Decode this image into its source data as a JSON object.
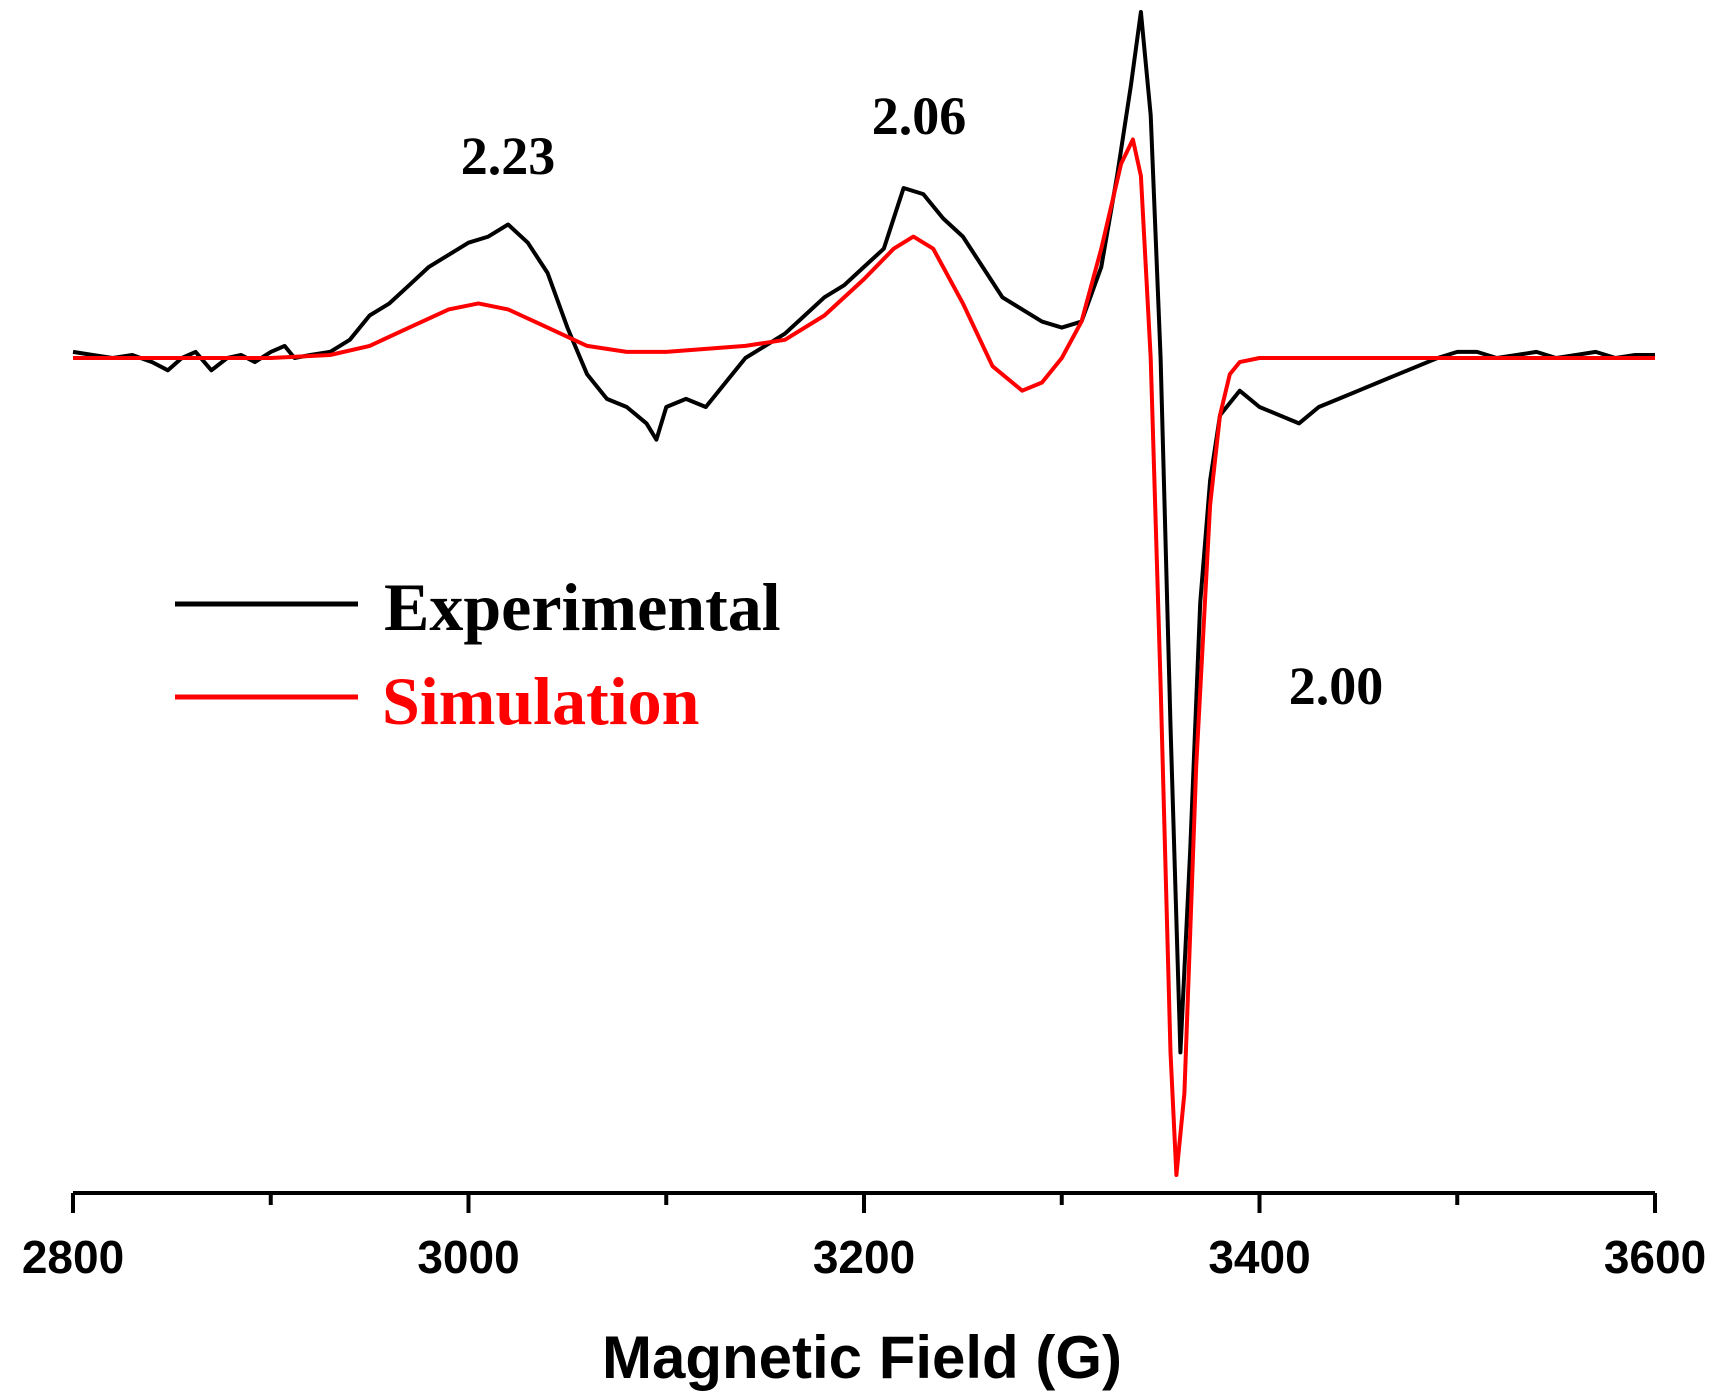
{
  "chart_data": {
    "type": "line",
    "title": "",
    "xlabel": "Magnetic Field (G)",
    "ylabel": "",
    "xlim": [
      2800,
      3600
    ],
    "ylim": [
      -1.0,
      0.4
    ],
    "x_ticks": [
      2800,
      3000,
      3200,
      3400,
      3600
    ],
    "x_tick_labels": [
      "2800",
      "3000",
      "3200",
      "3400",
      "3600"
    ],
    "x_minor_ticks": [
      2900,
      3100,
      3300,
      3500
    ],
    "grid": false,
    "legend_position": "middle-left",
    "colors": {
      "experimental": "#000000",
      "simulation": "#ff0000"
    },
    "annotations": [
      {
        "text": "2.23",
        "x": 3022,
        "y": 0.26
      },
      {
        "text": "2.06",
        "x": 3228,
        "y": 0.34
      },
      {
        "text": "2.00",
        "x": 3432,
        "y": -0.51
      }
    ],
    "series": [
      {
        "name": "Experimental",
        "color": "#000000",
        "x": [
          2800,
          2810,
          2820,
          2830,
          2840,
          2848,
          2855,
          2862,
          2870,
          2878,
          2885,
          2892,
          2900,
          2907,
          2912,
          2920,
          2930,
          2940,
          2950,
          2960,
          2970,
          2980,
          2990,
          3000,
          3010,
          3020,
          3030,
          3040,
          3050,
          3060,
          3070,
          3080,
          3090,
          3095,
          3100,
          3110,
          3120,
          3130,
          3140,
          3150,
          3160,
          3170,
          3180,
          3190,
          3200,
          3210,
          3220,
          3230,
          3240,
          3250,
          3260,
          3270,
          3280,
          3290,
          3300,
          3310,
          3320,
          3328,
          3335,
          3340,
          3345,
          3350,
          3355,
          3360,
          3365,
          3370,
          3375,
          3380,
          3390,
          3400,
          3410,
          3420,
          3430,
          3440,
          3450,
          3460,
          3470,
          3480,
          3490,
          3500,
          3510,
          3520,
          3530,
          3540,
          3550,
          3560,
          3570,
          3580,
          3590,
          3600
        ],
        "y": [
          0.01,
          0.005,
          0.0,
          0.005,
          -0.005,
          -0.015,
          0.0,
          0.01,
          -0.015,
          0.0,
          0.005,
          -0.005,
          0.01,
          0.02,
          0.0,
          0.005,
          0.01,
          0.03,
          0.07,
          0.09,
          0.12,
          0.15,
          0.17,
          0.19,
          0.2,
          0.22,
          0.19,
          0.14,
          0.05,
          -0.02,
          -0.05,
          -0.06,
          -0.08,
          -0.1,
          -0.06,
          -0.05,
          -0.06,
          -0.03,
          0.0,
          0.02,
          0.04,
          0.07,
          0.1,
          0.12,
          0.15,
          0.18,
          0.28,
          0.27,
          0.23,
          0.2,
          0.15,
          0.1,
          0.08,
          0.06,
          0.05,
          0.06,
          0.15,
          0.3,
          0.45,
          0.57,
          0.4,
          0.0,
          -0.45,
          -0.85,
          -0.6,
          -0.3,
          -0.15,
          -0.07,
          -0.04,
          -0.06,
          -0.07,
          -0.08,
          -0.06,
          -0.05,
          -0.04,
          -0.03,
          -0.02,
          -0.01,
          0.0,
          0.01,
          0.01,
          0.0,
          0.005,
          0.01,
          0.0,
          0.005,
          0.01,
          0.0,
          0.005,
          0.005
        ]
      },
      {
        "name": "Simulation",
        "color": "#ff0000",
        "x": [
          2800,
          2850,
          2900,
          2930,
          2950,
          2970,
          2990,
          3005,
          3020,
          3040,
          3060,
          3080,
          3100,
          3140,
          3160,
          3180,
          3200,
          3215,
          3225,
          3235,
          3250,
          3265,
          3280,
          3290,
          3300,
          3310,
          3320,
          3330,
          3336,
          3340,
          3345,
          3350,
          3355,
          3358,
          3362,
          3368,
          3375,
          3380,
          3385,
          3390,
          3400,
          3450,
          3500,
          3550,
          3600
        ],
        "y": [
          0.0,
          0.0,
          0.0,
          0.005,
          0.02,
          0.05,
          0.08,
          0.09,
          0.08,
          0.05,
          0.02,
          0.01,
          0.01,
          0.02,
          0.03,
          0.07,
          0.13,
          0.18,
          0.2,
          0.18,
          0.09,
          -0.01,
          -0.04,
          -0.03,
          0.0,
          0.06,
          0.18,
          0.32,
          0.36,
          0.3,
          0.0,
          -0.4,
          -0.85,
          -1.0,
          -0.9,
          -0.5,
          -0.18,
          -0.07,
          -0.02,
          -0.005,
          0.0,
          0.0,
          0.0,
          0.0,
          0.0
        ]
      }
    ]
  }
}
